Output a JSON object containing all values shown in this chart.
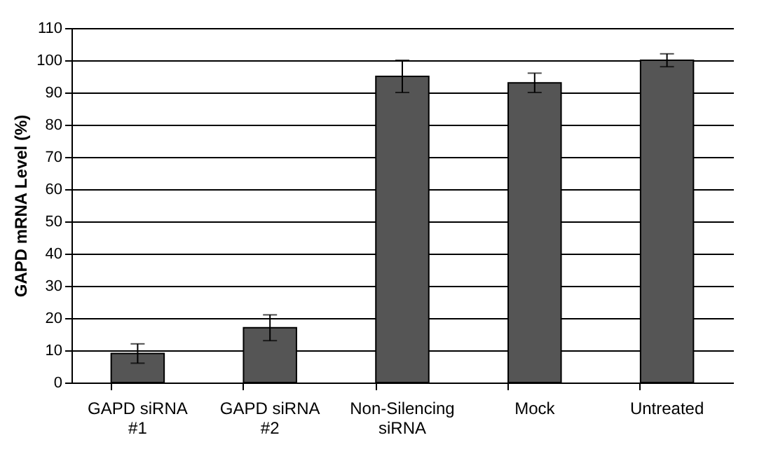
{
  "chart_data": {
    "type": "bar",
    "ylabel": "GAPD mRNA Level (%)",
    "categories": [
      "GAPD siRNA #1",
      "GAPD siRNA #2",
      "Non-Silencing siRNA",
      "Mock",
      "Untreated"
    ],
    "values": [
      9,
      17,
      95,
      93,
      100
    ],
    "errors": [
      3,
      4,
      5,
      3,
      2
    ],
    "color": "#555555",
    "ylim": [
      0,
      110
    ],
    "yticks": [
      0,
      10,
      20,
      30,
      40,
      50,
      60,
      70,
      80,
      90,
      100,
      110
    ],
    "grid": "y"
  }
}
